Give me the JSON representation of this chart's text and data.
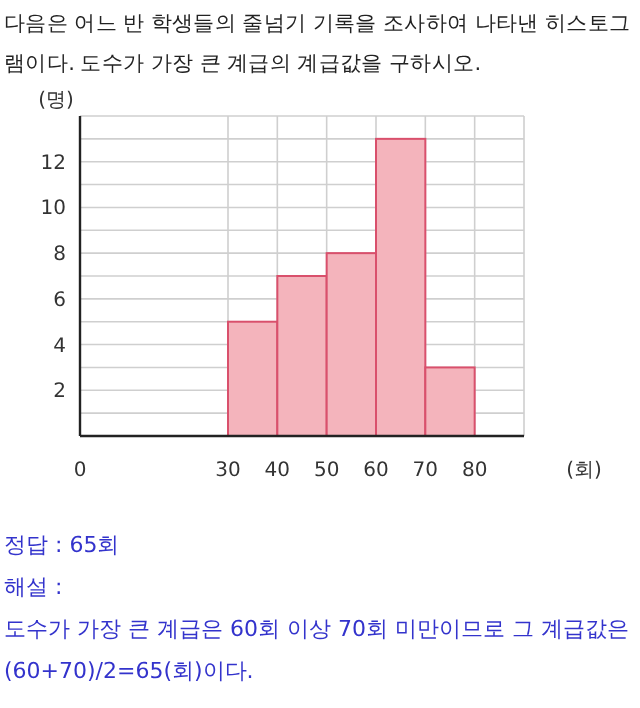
{
  "chart_data": {
    "type": "histogram",
    "title": "다음은 어느 반 학생들의 줄넘기 기록을 조사하여 나타낸 히스토그램이다. 도수가 가장 큰 계급의 계급값을 구하시오.",
    "xlabel": "(회)",
    "ylabel": "(명)",
    "bins": [
      30,
      40,
      50,
      60,
      70,
      80
    ],
    "values": [
      5,
      7,
      8,
      13,
      3
    ],
    "color": "#f4b4bc",
    "xlim": [
      0,
      90
    ],
    "xticks": [
      0,
      30,
      40,
      50,
      60,
      70,
      80,
      {
        "value": 90,
        "label": null
      }
    ],
    "ylim": [
      0,
      14
    ],
    "yticks": [
      {
        "value": 1,
        "label": null
      },
      2,
      {
        "value": 3,
        "label": null
      },
      4,
      {
        "value": 5,
        "label": null
      },
      6,
      {
        "value": 7,
        "label": null
      },
      8,
      {
        "value": 9,
        "label": null
      },
      10,
      {
        "value": 11,
        "label": null
      },
      12,
      {
        "value": 13,
        "label": null
      },
      {
        "value": 14,
        "label": null
      }
    ],
    "grid": true,
    "annotations": [
      "정답 : 65회",
      "해설 :",
      "도수가 가장 큰 계급은 60회 이상 70회 미만이므로 그 계급값은",
      "(60+70)/2=65(회)이다."
    ]
  }
}
